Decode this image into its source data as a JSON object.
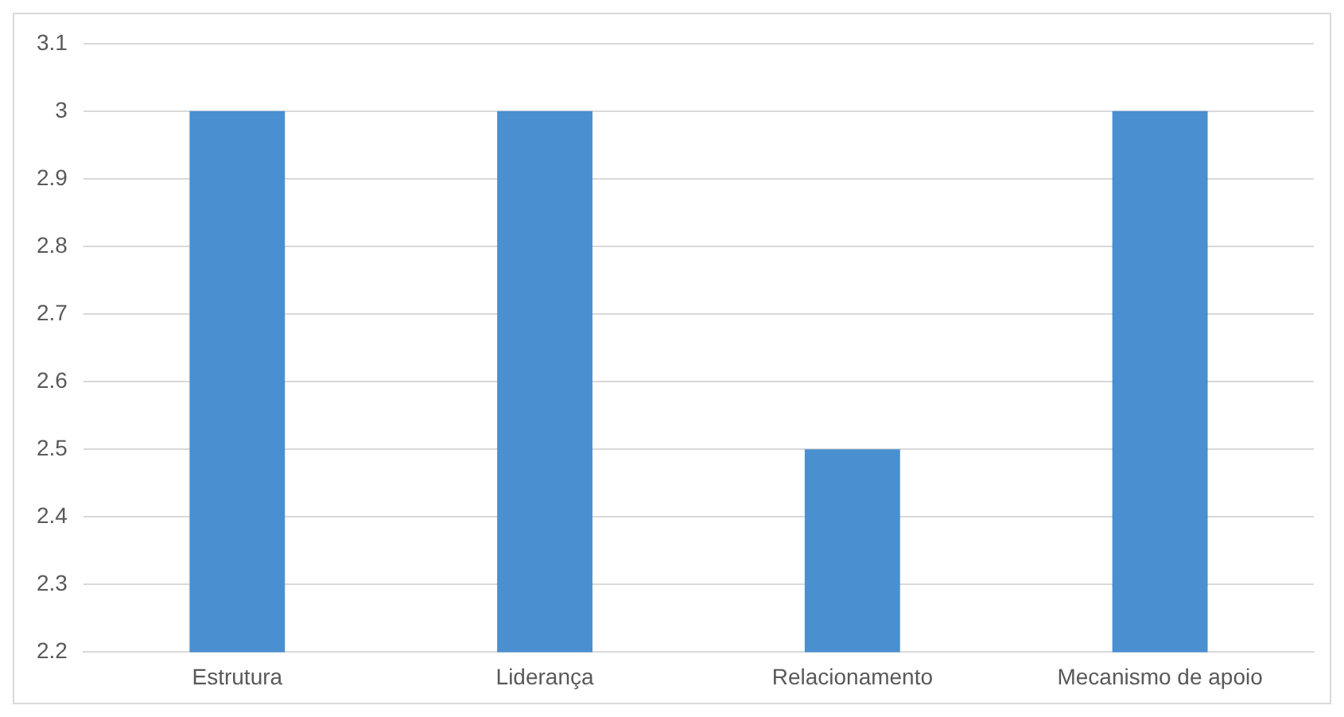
{
  "chart_data": {
    "type": "bar",
    "categories": [
      "Estrutura",
      "Liderança",
      "Relacionamento",
      "Mecanismo de apoio"
    ],
    "values": [
      3,
      3,
      2.5,
      3
    ],
    "color": "#4a8fd0",
    "ylim": [
      2.2,
      3.1
    ],
    "yticks": [
      2.2,
      2.3,
      2.4,
      2.5,
      2.6,
      2.7,
      2.8,
      2.9,
      3,
      3.1
    ],
    "grid": "y"
  }
}
